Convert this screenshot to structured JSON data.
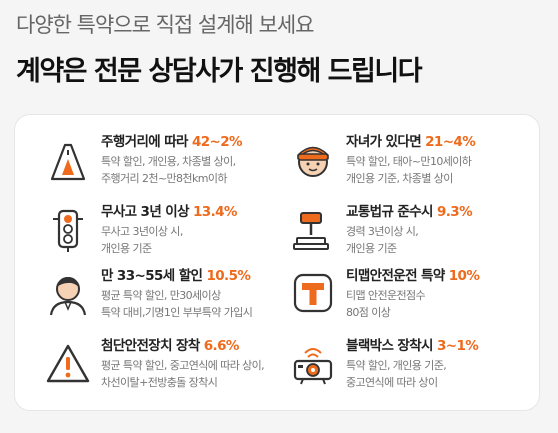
{
  "header": {
    "subtitle": "다양한 특약으로 직접 설계해 보세요",
    "headline": "계약은 전문 상담사가 진행해 드립니다"
  },
  "colors": {
    "accent": "#ee6a1c",
    "icon_stroke": "#333333",
    "background": "#f5f5f5",
    "card": "#ffffff"
  },
  "items": [
    {
      "icon": "road-icon",
      "title": "주행거리에 따라 ",
      "highlight": "42~2%",
      "desc1": "특약 할인, 개인용, 차종별 상이,",
      "desc2": "주행거리 2천~만8천km이하"
    },
    {
      "icon": "child-icon",
      "title": "자녀가 있다면 ",
      "highlight": "21~4%",
      "desc1": "특약 할인, 태아~만10세이하",
      "desc2": "개인용 기준, 차종별 상이"
    },
    {
      "icon": "traffic-light-icon",
      "title": "무사고 3년 이상 ",
      "highlight": "13.4%",
      "desc1": "무사고 3년이상 시,",
      "desc2": "개인용 기준"
    },
    {
      "icon": "gavel-icon",
      "title": "교통법규 준수시 ",
      "highlight": "9.3%",
      "desc1": "경력 3년이상 시,",
      "desc2": "개인용 기준"
    },
    {
      "icon": "person-icon",
      "title": "만 33~55세 할인 ",
      "highlight": "10.5%",
      "desc1": "평균 특약 할인, 만30세이상",
      "desc2": "특약 대비,기명1인 부부특약 가입시"
    },
    {
      "icon": "tmap-icon",
      "title": "티맵안전운전 특약 ",
      "highlight": "10%",
      "desc1": "티맵 안전운전점수",
      "desc2": "80점 이상"
    },
    {
      "icon": "warning-icon",
      "title": "첨단안전장치 장착 ",
      "highlight": "6.6%",
      "desc1": "평균 특약 할인, 중고연식에 따라 상이,",
      "desc2": "차선이탈+전방충돌 장착시"
    },
    {
      "icon": "dashcam-icon",
      "title": "블랙박스 장착시 ",
      "highlight": "3~1%",
      "desc1": "특약 할인, 개인용 기준,",
      "desc2": "중고연식에 따라 상이"
    }
  ]
}
